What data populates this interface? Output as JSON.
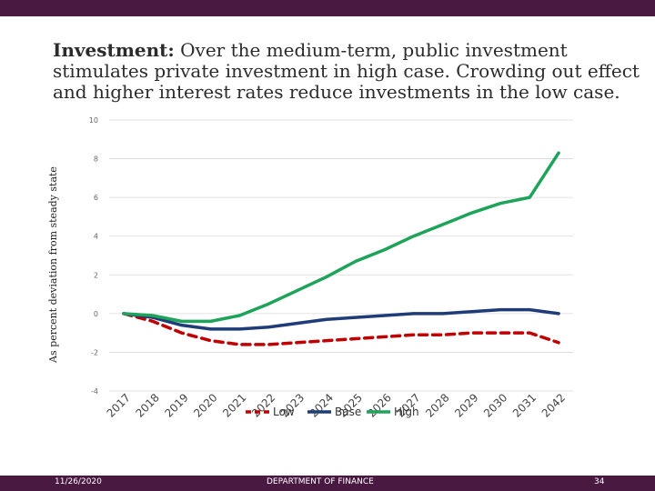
{
  "slide": {
    "title_bold": "Investment:",
    "title_rest": " Over the medium-term, public investment stimulates private investment in high case. Crowding out effect and higher interest rates reduce investments in the low case.",
    "footer_date": "11/26/2020",
    "footer_center": "DEPARTMENT OF FINANCE",
    "page_number": "34"
  },
  "colors": {
    "bar": "#4a1942",
    "low": "#c00000",
    "base": "#1f3c78",
    "high": "#1ea35a",
    "grid": "#d9d9d9"
  },
  "chart_data": {
    "type": "line",
    "title": "",
    "xlabel": "",
    "ylabel": "As percent deviation from steady state",
    "ylim": [
      -4,
      10
    ],
    "yticks": [
      "10",
      "8",
      "6",
      "4",
      "2",
      "0",
      "-2",
      "-4"
    ],
    "categories": [
      "2017",
      "2018",
      "2019",
      "2020",
      "2021",
      "2022",
      "2023",
      "2024",
      "2025",
      "2026",
      "2027",
      "2028",
      "2029",
      "2030",
      "2031",
      "2042"
    ],
    "legend_position": "bottom",
    "series": [
      {
        "name": "Low",
        "style": "dashed",
        "values": [
          0.0,
          -0.4,
          -1.0,
          -1.4,
          -1.6,
          -1.6,
          -1.5,
          -1.4,
          -1.3,
          -1.2,
          -1.1,
          -1.1,
          -1.0,
          -1.0,
          -1.0,
          -1.5
        ]
      },
      {
        "name": "Base",
        "style": "solid",
        "values": [
          0.0,
          -0.2,
          -0.6,
          -0.8,
          -0.8,
          -0.7,
          -0.5,
          -0.3,
          -0.2,
          -0.1,
          0.0,
          0.0,
          0.1,
          0.2,
          0.2,
          0.0
        ]
      },
      {
        "name": "High",
        "style": "solid",
        "values": [
          0.0,
          -0.1,
          -0.4,
          -0.4,
          -0.1,
          0.5,
          1.2,
          1.9,
          2.7,
          3.3,
          4.0,
          4.6,
          5.2,
          5.7,
          6.0,
          8.3
        ]
      }
    ]
  }
}
